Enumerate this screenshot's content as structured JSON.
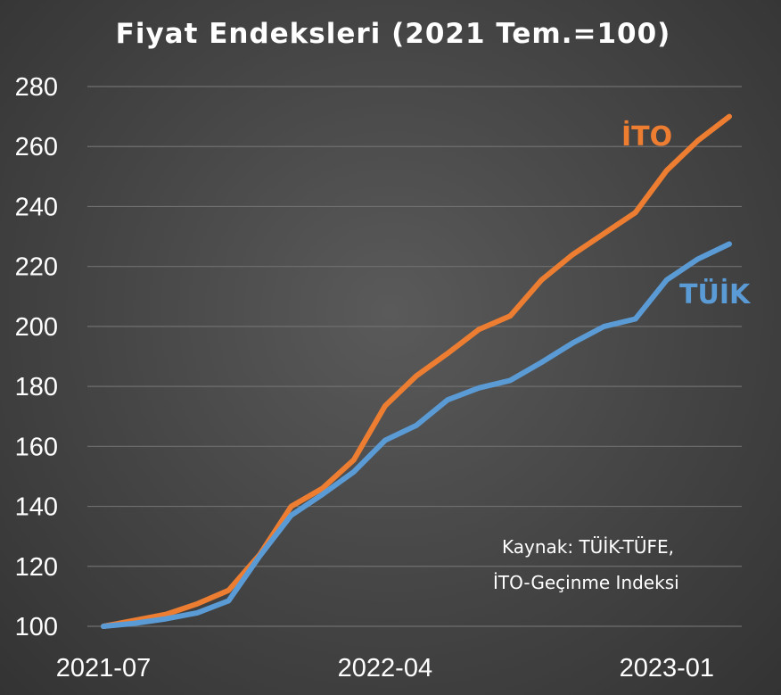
{
  "chart_data": {
    "type": "line",
    "title": "Fiyat Endeksleri (2021 Tem.=100)",
    "x": [
      "2021-07",
      "2021-08",
      "2021-09",
      "2021-10",
      "2021-11",
      "2021-12",
      "2022-01",
      "2022-02",
      "2022-03",
      "2022-04",
      "2022-05",
      "2022-06",
      "2022-07",
      "2022-08",
      "2022-09",
      "2022-10",
      "2022-11",
      "2022-12",
      "2023-01",
      "2023-02",
      "2023-03"
    ],
    "x_tick_labels": [
      "2021-07",
      "2022-04",
      "2023-01"
    ],
    "ylim": [
      100,
      280
    ],
    "y_ticks": [
      100,
      120,
      140,
      160,
      180,
      200,
      220,
      240,
      260,
      280
    ],
    "grid": true,
    "series": [
      {
        "name": "İTO",
        "color": "#ed7d31",
        "values": [
          100,
          102,
          104,
          107.5,
          112,
          124,
          140,
          146,
          155.5,
          173.5,
          183.5,
          191,
          199,
          203.5,
          215.5,
          224,
          231,
          238,
          252,
          262,
          270
        ]
      },
      {
        "name": "TÜİK",
        "color": "#5b9bd5",
        "values": [
          100,
          101,
          102.5,
          104.5,
          108.5,
          123.5,
          137,
          144,
          151.5,
          162,
          167,
          175.5,
          179.5,
          182,
          188,
          194.5,
          200,
          202.5,
          215.5,
          222.5,
          227.5
        ]
      }
    ],
    "source_note": [
      "Kaynak: TÜİK-TÜFE,",
      "İTO-Geçinme Indeksi"
    ]
  }
}
